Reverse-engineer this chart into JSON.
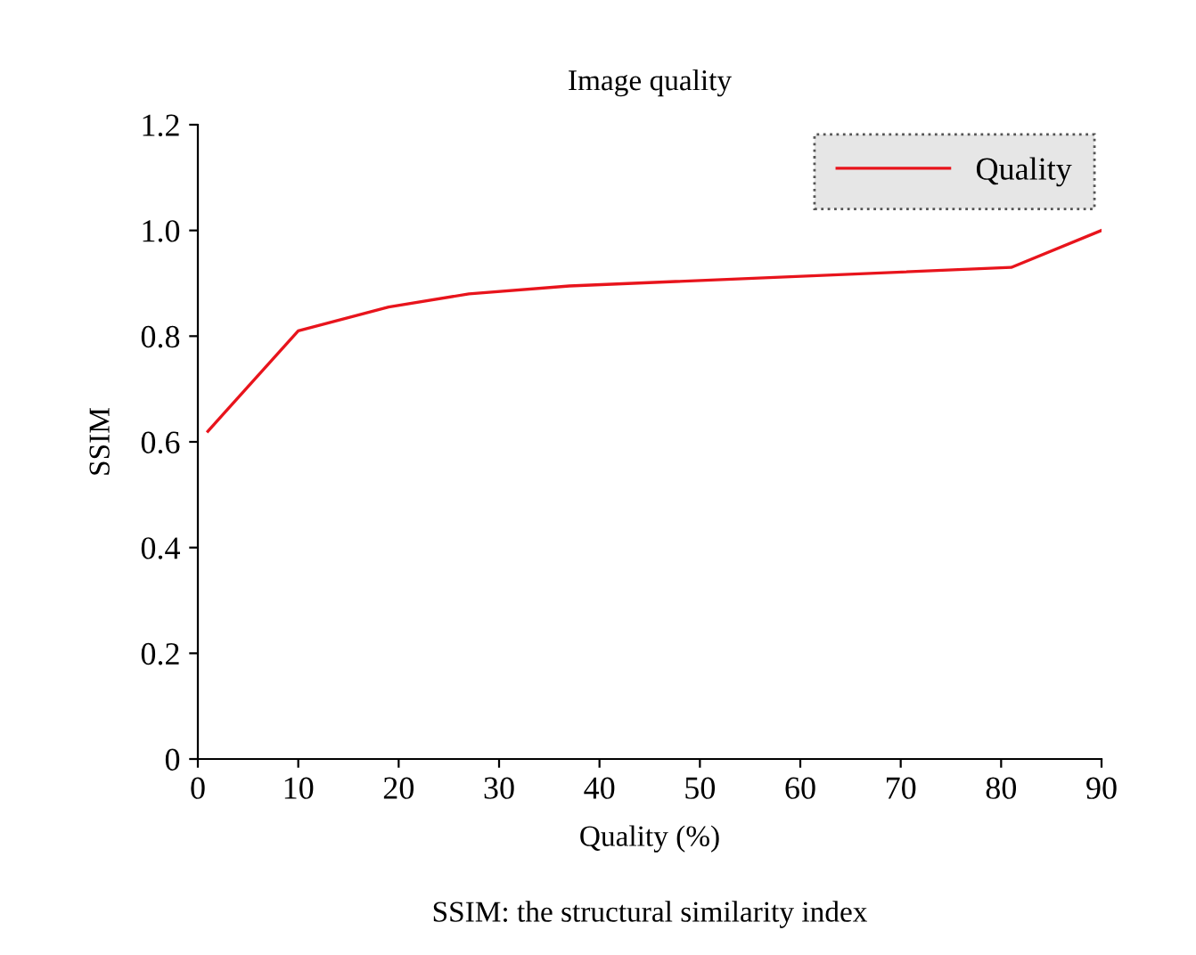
{
  "chart_data": {
    "type": "line",
    "title": "Image quality",
    "xlabel": "Quality (%)",
    "ylabel": "SSIM",
    "x": [
      1,
      10,
      19,
      27,
      37,
      81,
      90
    ],
    "series": [
      {
        "name": "Quality",
        "color": "#e8141c",
        "values": [
          0.62,
          0.81,
          0.855,
          0.88,
          0.895,
          0.93,
          1.0
        ]
      }
    ],
    "xlim": [
      0,
      90
    ],
    "xticks": [
      0,
      10,
      20,
      30,
      40,
      50,
      60,
      70,
      80,
      90
    ],
    "ylim": [
      0,
      1.2
    ],
    "yticks": [
      0,
      {
        "value": 0.2,
        "label": "0.2"
      },
      {
        "value": 0.4,
        "label": "0.4"
      },
      {
        "value": 0.6,
        "label": "0.6"
      },
      {
        "value": 0.8,
        "label": "0.8"
      },
      {
        "value": 1.0,
        "label": "1.0"
      },
      {
        "value": 1.2,
        "label": "1.2"
      }
    ],
    "legend": "top right",
    "grid": false,
    "annotations": [
      "SSIM: the structural similarity index"
    ]
  }
}
